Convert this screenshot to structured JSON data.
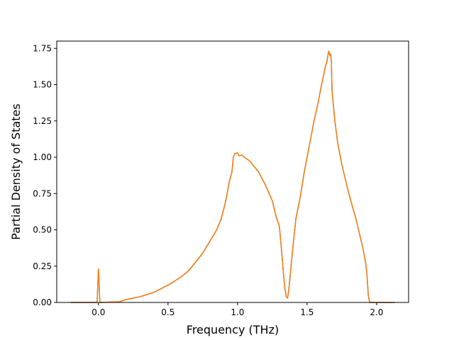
{
  "chart_data": {
    "type": "line",
    "title": "",
    "xlabel": "Frequency (THz)",
    "ylabel": "Partial Density of States",
    "xlim": [
      -0.3,
      2.23
    ],
    "ylim": [
      0.0,
      1.8
    ],
    "xticks": [
      0.0,
      0.5,
      1.0,
      1.5,
      2.0
    ],
    "xtick_labels": [
      "0.0",
      "0.5",
      "1.0",
      "1.5",
      "2.0"
    ],
    "yticks": [
      0.0,
      0.25,
      0.5,
      0.75,
      1.0,
      1.25,
      1.5,
      1.75
    ],
    "ytick_labels": [
      "0.00",
      "0.25",
      "0.50",
      "0.75",
      "1.00",
      "1.25",
      "1.50",
      "1.75"
    ],
    "grid": false,
    "legend": "none",
    "colors": {
      "line_under": "#1f77b4",
      "line_over": "#ff7f0e",
      "frame": "#000000"
    },
    "series": [
      {
        "color": "#1f77b4",
        "points": [
          [
            -0.2,
            0
          ],
          [
            -0.05,
            0
          ],
          [
            -0.01,
            0
          ],
          [
            0.0,
            0.23
          ],
          [
            0.01,
            0
          ],
          [
            0.1,
            0.003
          ],
          [
            0.15,
            0.005
          ],
          [
            0.2,
            0.02
          ],
          [
            0.3,
            0.04
          ],
          [
            0.4,
            0.07
          ],
          [
            0.5,
            0.12
          ],
          [
            0.52,
            0.13
          ],
          [
            0.6,
            0.18
          ],
          [
            0.65,
            0.22
          ],
          [
            0.7,
            0.28
          ],
          [
            0.75,
            0.34
          ],
          [
            0.8,
            0.42
          ],
          [
            0.85,
            0.5
          ],
          [
            0.88,
            0.57
          ],
          [
            0.9,
            0.64
          ],
          [
            0.92,
            0.72
          ],
          [
            0.94,
            0.83
          ],
          [
            0.96,
            0.9
          ],
          [
            0.97,
            1.0
          ],
          [
            0.98,
            1.025
          ],
          [
            1.0,
            1.03
          ],
          [
            1.01,
            1.01
          ],
          [
            1.03,
            1.015
          ],
          [
            1.05,
            1.0
          ],
          [
            1.08,
            0.98
          ],
          [
            1.1,
            0.96
          ],
          [
            1.15,
            0.9
          ],
          [
            1.2,
            0.81
          ],
          [
            1.25,
            0.7
          ],
          [
            1.28,
            0.58
          ],
          [
            1.3,
            0.53
          ],
          [
            1.31,
            0.43
          ],
          [
            1.32,
            0.32
          ],
          [
            1.33,
            0.2
          ],
          [
            1.34,
            0.1
          ],
          [
            1.35,
            0.04
          ],
          [
            1.36,
            0.03
          ],
          [
            1.37,
            0.1
          ],
          [
            1.38,
            0.2
          ],
          [
            1.4,
            0.4
          ],
          [
            1.42,
            0.58
          ],
          [
            1.45,
            0.72
          ],
          [
            1.48,
            0.9
          ],
          [
            1.5,
            1.0
          ],
          [
            1.52,
            1.1
          ],
          [
            1.55,
            1.25
          ],
          [
            1.58,
            1.38
          ],
          [
            1.6,
            1.48
          ],
          [
            1.62,
            1.57
          ],
          [
            1.63,
            1.62
          ],
          [
            1.64,
            1.65
          ],
          [
            1.65,
            1.7
          ],
          [
            1.655,
            1.73
          ],
          [
            1.66,
            1.72
          ],
          [
            1.665,
            1.7
          ],
          [
            1.67,
            1.71
          ],
          [
            1.675,
            1.65
          ],
          [
            1.68,
            1.45
          ],
          [
            1.7,
            1.25
          ],
          [
            1.72,
            1.1
          ],
          [
            1.75,
            0.95
          ],
          [
            1.8,
            0.75
          ],
          [
            1.85,
            0.58
          ],
          [
            1.9,
            0.38
          ],
          [
            1.92,
            0.28
          ],
          [
            1.93,
            0.2
          ],
          [
            1.94,
            0.05
          ],
          [
            1.95,
            0.0
          ],
          [
            2.0,
            0.0
          ],
          [
            2.13,
            0.0
          ]
        ]
      },
      {
        "color": "#ff7f0e",
        "points": [
          [
            -0.2,
            0
          ],
          [
            -0.05,
            0
          ],
          [
            -0.01,
            0
          ],
          [
            0.0,
            0.23
          ],
          [
            0.01,
            0
          ],
          [
            0.1,
            0.003
          ],
          [
            0.15,
            0.005
          ],
          [
            0.2,
            0.02
          ],
          [
            0.3,
            0.04
          ],
          [
            0.4,
            0.07
          ],
          [
            0.5,
            0.12
          ],
          [
            0.52,
            0.13
          ],
          [
            0.6,
            0.18
          ],
          [
            0.65,
            0.22
          ],
          [
            0.7,
            0.28
          ],
          [
            0.75,
            0.34
          ],
          [
            0.8,
            0.42
          ],
          [
            0.85,
            0.5
          ],
          [
            0.88,
            0.57
          ],
          [
            0.9,
            0.64
          ],
          [
            0.92,
            0.72
          ],
          [
            0.94,
            0.83
          ],
          [
            0.96,
            0.9
          ],
          [
            0.97,
            1.0
          ],
          [
            0.98,
            1.025
          ],
          [
            1.0,
            1.03
          ],
          [
            1.01,
            1.01
          ],
          [
            1.03,
            1.015
          ],
          [
            1.05,
            1.0
          ],
          [
            1.08,
            0.98
          ],
          [
            1.1,
            0.96
          ],
          [
            1.15,
            0.9
          ],
          [
            1.2,
            0.81
          ],
          [
            1.25,
            0.7
          ],
          [
            1.28,
            0.58
          ],
          [
            1.3,
            0.53
          ],
          [
            1.31,
            0.43
          ],
          [
            1.32,
            0.32
          ],
          [
            1.33,
            0.2
          ],
          [
            1.34,
            0.1
          ],
          [
            1.35,
            0.04
          ],
          [
            1.36,
            0.03
          ],
          [
            1.37,
            0.1
          ],
          [
            1.38,
            0.2
          ],
          [
            1.4,
            0.4
          ],
          [
            1.42,
            0.58
          ],
          [
            1.45,
            0.72
          ],
          [
            1.48,
            0.9
          ],
          [
            1.5,
            1.0
          ],
          [
            1.52,
            1.1
          ],
          [
            1.55,
            1.25
          ],
          [
            1.58,
            1.38
          ],
          [
            1.6,
            1.48
          ],
          [
            1.62,
            1.57
          ],
          [
            1.63,
            1.62
          ],
          [
            1.64,
            1.65
          ],
          [
            1.65,
            1.7
          ],
          [
            1.655,
            1.73
          ],
          [
            1.66,
            1.72
          ],
          [
            1.665,
            1.7
          ],
          [
            1.67,
            1.71
          ],
          [
            1.675,
            1.65
          ],
          [
            1.68,
            1.45
          ],
          [
            1.7,
            1.25
          ],
          [
            1.72,
            1.1
          ],
          [
            1.75,
            0.95
          ],
          [
            1.8,
            0.75
          ],
          [
            1.85,
            0.58
          ],
          [
            1.9,
            0.38
          ],
          [
            1.92,
            0.28
          ],
          [
            1.93,
            0.2
          ],
          [
            1.94,
            0.05
          ],
          [
            1.95,
            0.0
          ],
          [
            2.0,
            0.0
          ],
          [
            2.13,
            0.0
          ]
        ]
      }
    ]
  }
}
